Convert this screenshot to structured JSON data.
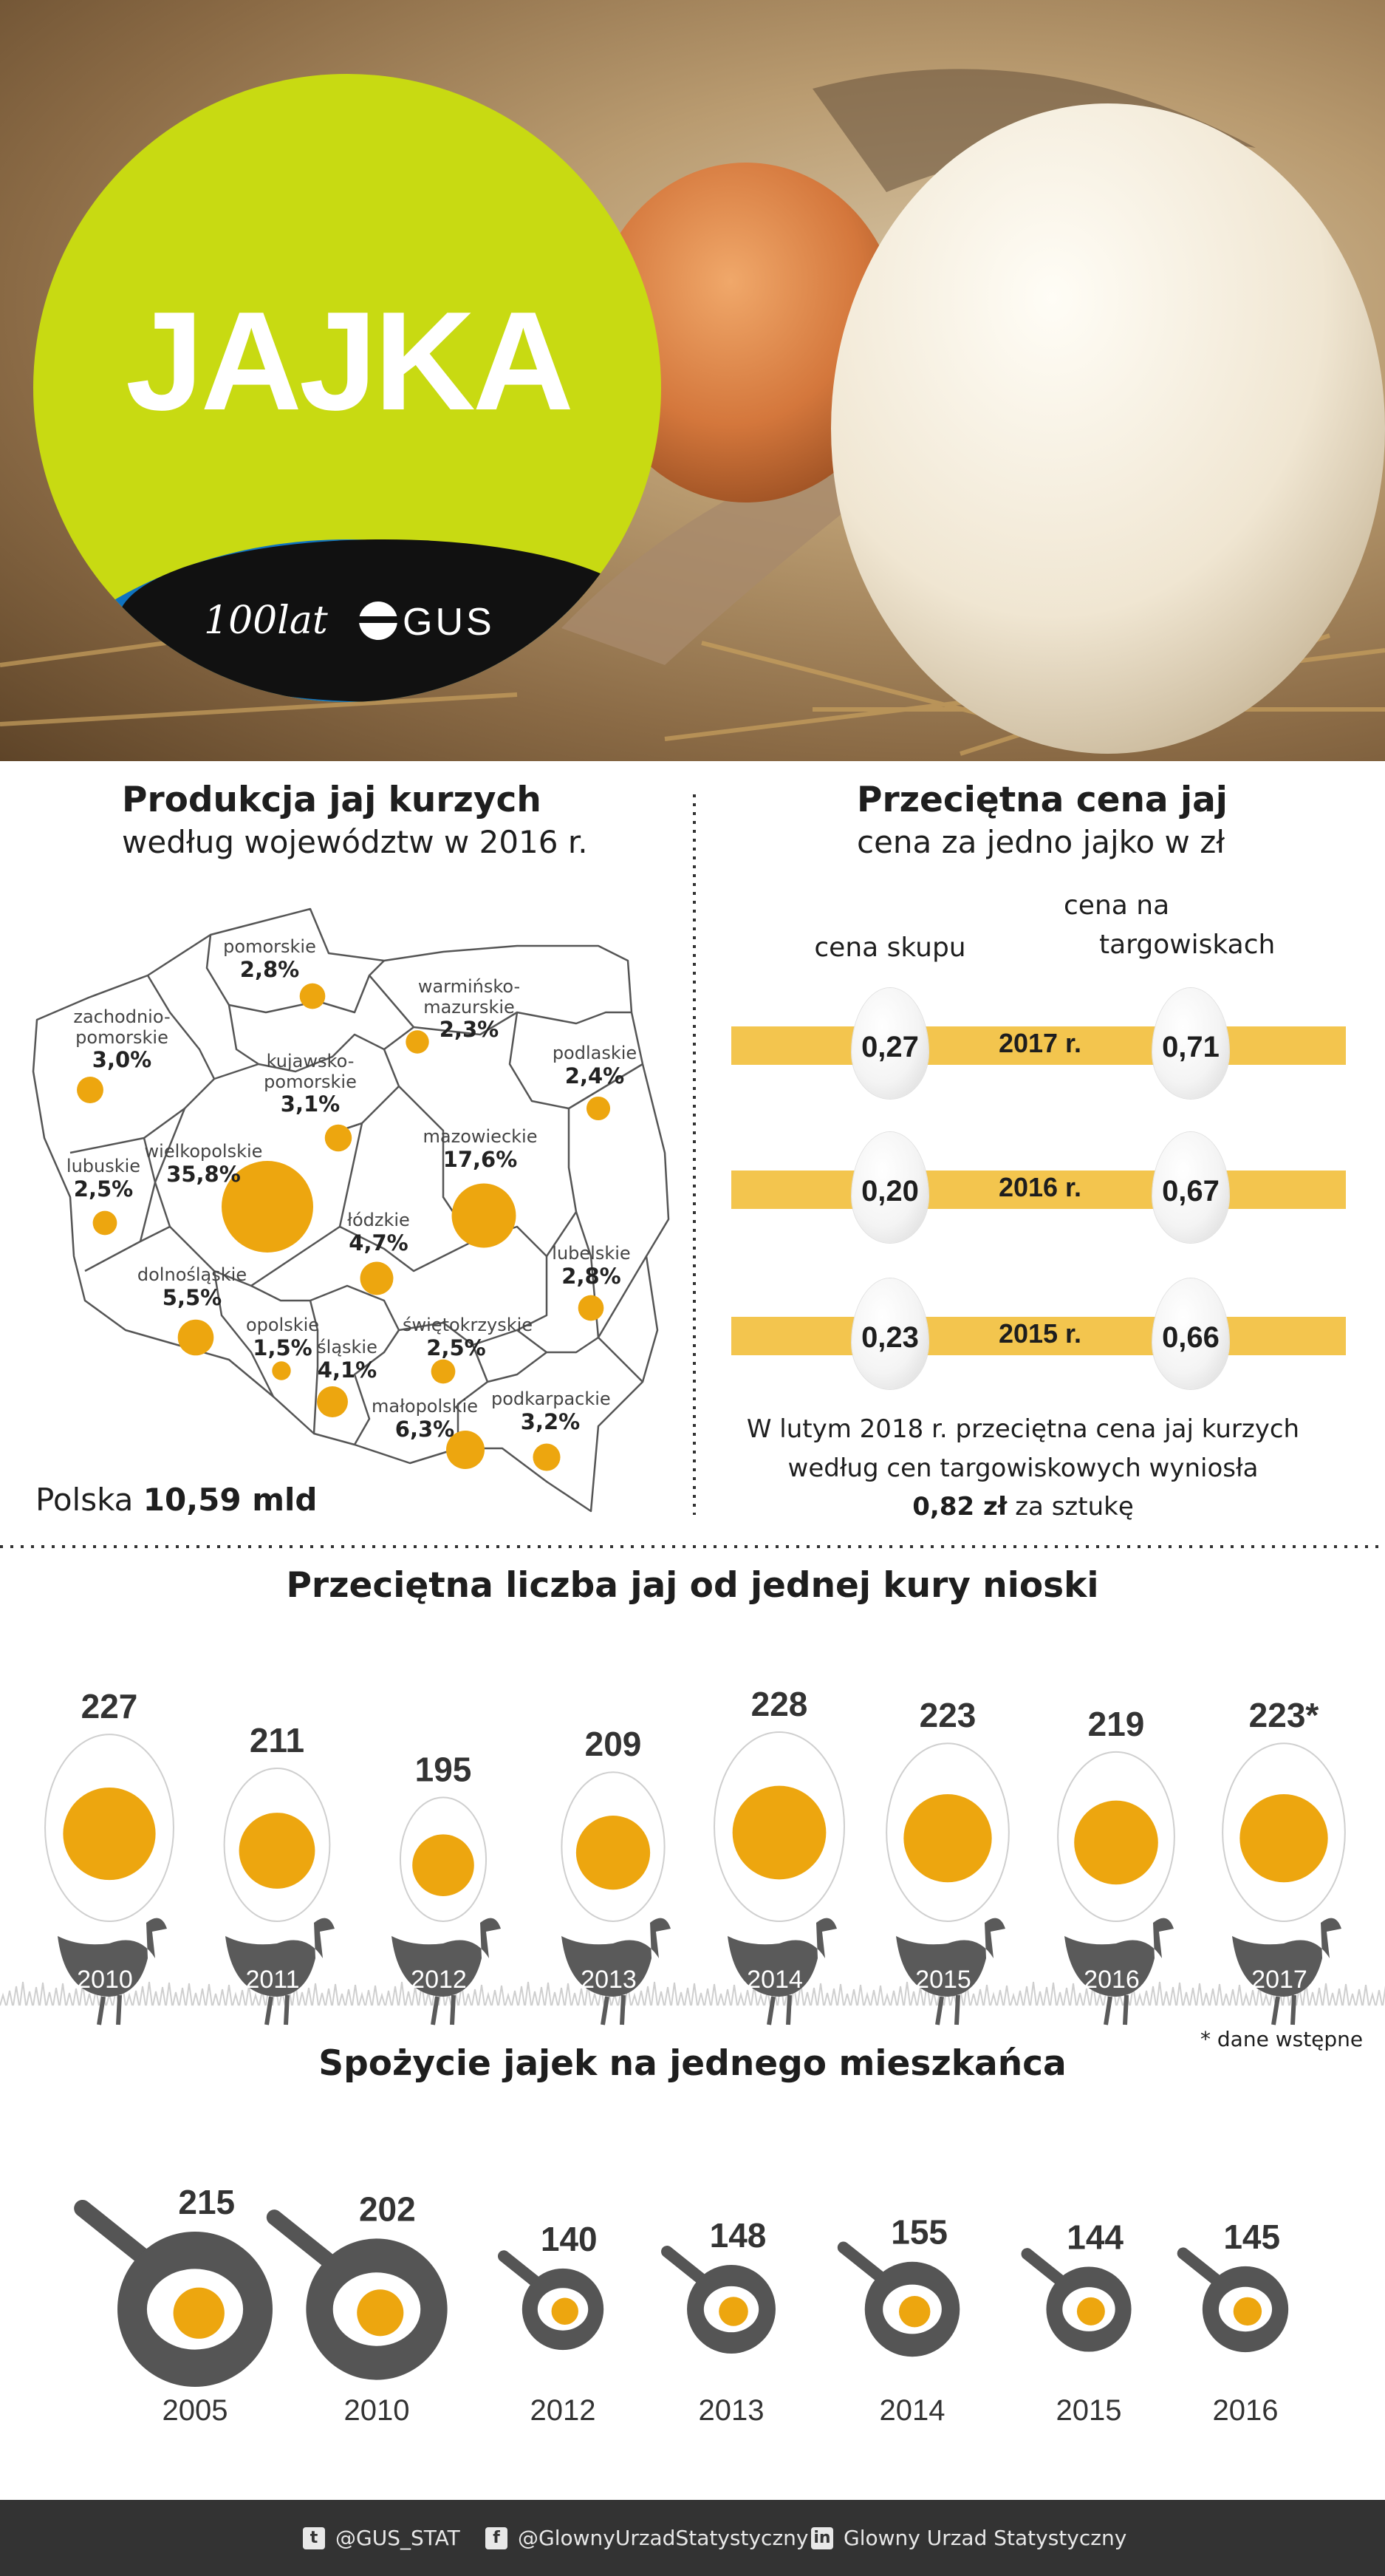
{
  "header": {
    "title": "JAJKA",
    "logo_text": "100lat",
    "logo_brand": "GUS"
  },
  "production": {
    "title": "Produkcja jaj kurzych",
    "subtitle": "według województw w 2016 r.",
    "total_prefix": "Polska",
    "total_value": "10,59 mld",
    "regions": [
      {
        "name": "pomorskie",
        "share": "2,8%",
        "value": 2.8
      },
      {
        "name": "warmińsko-mazurskie",
        "share": "2,3%",
        "value": 2.3
      },
      {
        "name": "zachodnio-pomorskie",
        "share": "3,0%",
        "value": 3.0
      },
      {
        "name": "kujawsko-pomorskie",
        "share": "3,1%",
        "value": 3.1
      },
      {
        "name": "podlaskie",
        "share": "2,4%",
        "value": 2.4
      },
      {
        "name": "lubuskie",
        "share": "2,5%",
        "value": 2.5
      },
      {
        "name": "wielkopolskie",
        "share": "35,8%",
        "value": 35.8
      },
      {
        "name": "mazowieckie",
        "share": "17,6%",
        "value": 17.6
      },
      {
        "name": "łódzkie",
        "share": "4,7%",
        "value": 4.7
      },
      {
        "name": "lubelskie",
        "share": "2,8%",
        "value": 2.8
      },
      {
        "name": "dolnośląskie",
        "share": "5,5%",
        "value": 5.5
      },
      {
        "name": "opolskie",
        "share": "1,5%",
        "value": 1.5
      },
      {
        "name": "śląskie",
        "share": "4,1%",
        "value": 4.1
      },
      {
        "name": "świętokrzyskie",
        "share": "2,5%",
        "value": 2.5
      },
      {
        "name": "małopolskie",
        "share": "6,3%",
        "value": 6.3
      },
      {
        "name": "podkarpackie",
        "share": "3,2%",
        "value": 3.2
      }
    ]
  },
  "price": {
    "title": "Przeciętna cena jaj",
    "subtitle": "cena za jedno jajko w zł",
    "col1": "cena skupu",
    "col2_line1": "cena na",
    "col2_line2": "targowiskach",
    "rows": [
      {
        "year": "2017 r.",
        "purchase": "0,27",
        "market": "0,71"
      },
      {
        "year": "2016 r.",
        "purchase": "0,20",
        "market": "0,67"
      },
      {
        "year": "2015 r.",
        "purchase": "0,23",
        "market": "0,66"
      }
    ],
    "note_line1": "W lutym 2018 r. przeciętna cena jaj kurzych",
    "note_line2": "według cen targowiskowych wyniosła",
    "note_bold": "0,82 zł",
    "note_end": "za sztukę"
  },
  "hens": {
    "title": "Przeciętna liczba jaj od jednej kury nioski",
    "footnote": "* dane wstępne",
    "items": [
      {
        "year": "2010",
        "label": "227",
        "value": 227
      },
      {
        "year": "2011",
        "label": "211",
        "value": 211
      },
      {
        "year": "2012",
        "label": "195",
        "value": 195
      },
      {
        "year": "2013",
        "label": "209",
        "value": 209
      },
      {
        "year": "2014",
        "label": "228",
        "value": 228
      },
      {
        "year": "2015",
        "label": "223",
        "value": 223
      },
      {
        "year": "2016",
        "label": "219",
        "value": 219
      },
      {
        "year": "2017",
        "label": "223*",
        "value": 223
      }
    ]
  },
  "consumption": {
    "title": "Spożycie jajek na jednego mieszkańca",
    "items": [
      {
        "year": "2005",
        "label": "215",
        "value": 215
      },
      {
        "year": "2010",
        "label": "202",
        "value": 202
      },
      {
        "year": "2012",
        "label": "140",
        "value": 140
      },
      {
        "year": "2013",
        "label": "148",
        "value": 148
      },
      {
        "year": "2014",
        "label": "155",
        "value": 155
      },
      {
        "year": "2015",
        "label": "144",
        "value": 144
      },
      {
        "year": "2016",
        "label": "145",
        "value": 145
      }
    ]
  },
  "chart_data": [
    {
      "type": "bubble-map",
      "title": "Produkcja jaj kurzych",
      "subtitle": "według województw w 2016 r.",
      "categories": [
        "pomorskie",
        "warmińsko-mazurskie",
        "zachodnio-pomorskie",
        "kujawsko-pomorskie",
        "podlaskie",
        "lubuskie",
        "wielkopolskie",
        "mazowieckie",
        "łódzkie",
        "lubelskie",
        "dolnośląskie",
        "opolskie",
        "śląskie",
        "świętokrzyskie",
        "małopolskie",
        "podkarpackie"
      ],
      "values": [
        2.8,
        2.3,
        3.0,
        3.1,
        2.4,
        2.5,
        35.8,
        17.6,
        4.7,
        2.8,
        5.5,
        1.5,
        4.1,
        2.5,
        6.3,
        3.2
      ],
      "unit": "%"
    },
    {
      "type": "table",
      "title": "Przeciętna cena jaj",
      "subtitle": "cena za jedno jajko w zł",
      "categories": [
        "2017 r.",
        "2016 r.",
        "2015 r."
      ],
      "series": [
        {
          "name": "cena skupu",
          "values": [
            0.27,
            0.2,
            0.23
          ]
        },
        {
          "name": "cena na targowiskach",
          "values": [
            0.71,
            0.67,
            0.66
          ]
        }
      ]
    },
    {
      "type": "bubble",
      "title": "Przeciętna liczba jaj od jednej kury nioski",
      "categories": [
        "2010",
        "2011",
        "2012",
        "2013",
        "2014",
        "2015",
        "2016",
        "2017"
      ],
      "values": [
        227,
        211,
        195,
        209,
        228,
        223,
        219,
        223
      ]
    },
    {
      "type": "bubble",
      "title": "Spożycie jajek na jednego mieszkańca",
      "categories": [
        "2005",
        "2010",
        "2012",
        "2013",
        "2014",
        "2015",
        "2016"
      ],
      "values": [
        215,
        202,
        140,
        148,
        155,
        144,
        145
      ]
    }
  ],
  "footer": {
    "twitter": "@GUS_STAT",
    "facebook": "@GlownyUrzadStatystyczny",
    "linkedin": "Glowny Urzad Statystyczny"
  },
  "colors": {
    "yolk": "#EDA60F",
    "band": "#F3C54E",
    "lime": "#C8DA12",
    "blue": "#0F73C0",
    "hen": "#5A5A5A",
    "footer": "#333333"
  }
}
